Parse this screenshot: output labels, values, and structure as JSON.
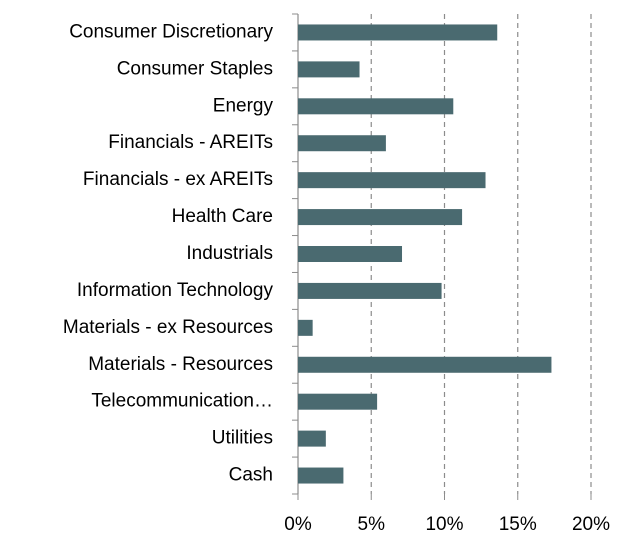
{
  "chart_data": {
    "type": "barh",
    "categories": [
      "Consumer Discretionary",
      "Consumer Staples",
      "Energy",
      "Financials - AREITs",
      "Financials - ex AREITs",
      "Health Care",
      "Industrials",
      "Information Technology",
      "Materials - ex Resources",
      "Materials - Resources",
      "Telecommunication…",
      "Utilities",
      "Cash"
    ],
    "values": [
      13.6,
      4.2,
      10.6,
      6.0,
      12.8,
      11.2,
      7.1,
      9.8,
      1.0,
      17.3,
      5.4,
      1.9,
      3.1
    ],
    "color": "#4a6a70",
    "xlim": [
      0,
      20
    ],
    "xticks": [
      {
        "value": 0,
        "label": "0%"
      },
      {
        "value": 5,
        "label": "5%"
      },
      {
        "value": 10,
        "label": "10%"
      },
      {
        "value": 15,
        "label": "15%"
      },
      {
        "value": 20,
        "label": "20%"
      }
    ],
    "grid": true
  }
}
